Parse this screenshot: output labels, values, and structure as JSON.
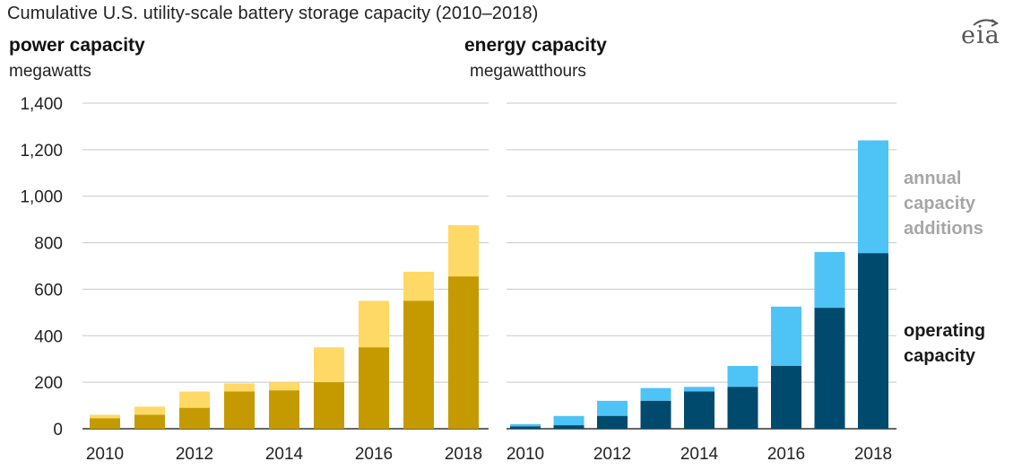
{
  "title": "Cumulative U.S. utility-scale battery storage capacity (2010–2018)",
  "logo": "eia",
  "colors": {
    "power_operating": "#c49a00",
    "power_additions": "#ffd966",
    "energy_operating": "#004a6e",
    "energy_additions": "#4ec3f5",
    "legend_additions": "#a6a6a6",
    "legend_operating": "#1a1a1a",
    "grid": "#c8c8c8"
  },
  "legend": {
    "additions": [
      "annual",
      "capacity",
      "additions"
    ],
    "operating": [
      "operating",
      "capacity"
    ]
  },
  "chart_data": [
    {
      "type": "bar",
      "title": "power capacity",
      "ylabel": "megawatts",
      "stacked": true,
      "ylim": [
        0,
        1400
      ],
      "yticks": [
        "0",
        "200",
        "400",
        "600",
        "800",
        "1,000",
        "1,200",
        "1,400"
      ],
      "ytick_values": [
        0,
        200,
        400,
        600,
        800,
        1000,
        1200,
        1400
      ],
      "categories": [
        "2010",
        "2011",
        "2012",
        "2013",
        "2014",
        "2015",
        "2016",
        "2017",
        "2018"
      ],
      "xtick_labels": [
        "2010",
        "",
        "2012",
        "",
        "2014",
        "",
        "2016",
        "",
        "2018"
      ],
      "series": [
        {
          "name": "operating capacity",
          "values": [
            45,
            60,
            90,
            160,
            165,
            200,
            350,
            550,
            655
          ]
        },
        {
          "name": "annual capacity additions",
          "values": [
            15,
            35,
            70,
            35,
            35,
            150,
            200,
            125,
            220
          ]
        }
      ]
    },
    {
      "type": "bar",
      "title": "energy capacity",
      "ylabel": "megawatthours",
      "stacked": true,
      "ylim": [
        0,
        1400
      ],
      "categories": [
        "2010",
        "2011",
        "2012",
        "2013",
        "2014",
        "2015",
        "2016",
        "2017",
        "2018"
      ],
      "xtick_labels": [
        "2010",
        "",
        "2012",
        "",
        "2014",
        "",
        "2016",
        "",
        "2018"
      ],
      "series": [
        {
          "name": "operating capacity",
          "values": [
            10,
            15,
            55,
            120,
            160,
            180,
            270,
            520,
            755
          ]
        },
        {
          "name": "annual capacity additions",
          "values": [
            10,
            40,
            65,
            55,
            20,
            90,
            255,
            240,
            485
          ]
        }
      ]
    }
  ]
}
